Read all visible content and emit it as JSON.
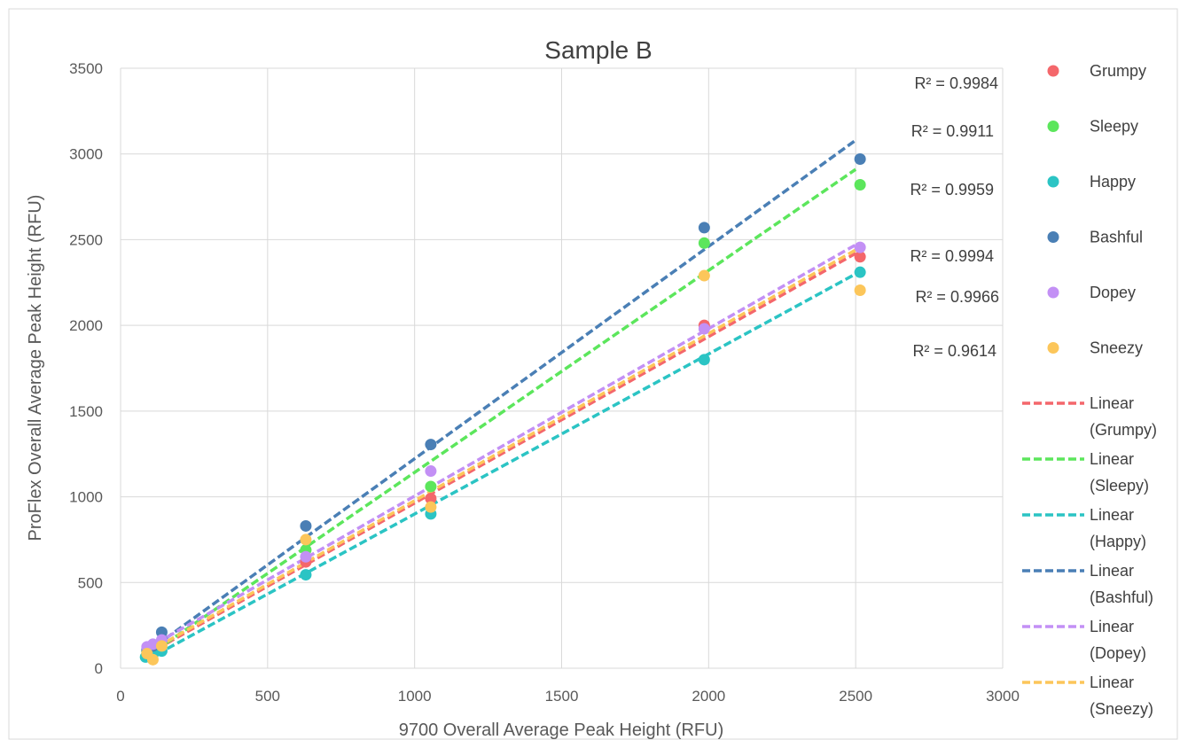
{
  "chart_data": {
    "type": "scatter",
    "title": "Sample B",
    "xlabel": "9700 Overall Average Peak Height (RFU)",
    "ylabel": "ProFlex Overall Average Peak Height (RFU)",
    "xlim": [
      0,
      3000
    ],
    "ylim": [
      0,
      3500
    ],
    "x_ticks": [
      0,
      500,
      1000,
      1500,
      2000,
      2500,
      3000
    ],
    "y_ticks": [
      0,
      500,
      1000,
      1500,
      2000,
      2500,
      3000,
      3500
    ],
    "grid": true,
    "legend_position": "right",
    "series": [
      {
        "name": "Grumpy",
        "color": "#f4676b",
        "points": [
          [
            90,
            100
          ],
          [
            110,
            120
          ],
          [
            140,
            145
          ],
          [
            630,
            620
          ],
          [
            1055,
            990
          ],
          [
            1985,
            2000
          ],
          [
            2515,
            2400
          ]
        ],
        "trendline": {
          "label": "Linear",
          "name": "(Grumpy)",
          "x0": 90,
          "y0": 80,
          "x1": 2500,
          "y1": 2420
        },
        "r2_label": "R² = 0.9984"
      },
      {
        "name": "Sleepy",
        "color": "#5ce65c",
        "points": [
          [
            90,
            95
          ],
          [
            110,
            120
          ],
          [
            140,
            150
          ],
          [
            630,
            690
          ],
          [
            1055,
            1060
          ],
          [
            1985,
            2480
          ],
          [
            2515,
            2820
          ]
        ],
        "trendline": {
          "label": "Linear",
          "name": "(Sleepy)",
          "x0": 90,
          "y0": 70,
          "x1": 2500,
          "y1": 2910
        },
        "r2_label": "R² = 0.9911"
      },
      {
        "name": "Happy",
        "color": "#2bc4c4",
        "points": [
          [
            85,
            65
          ],
          [
            110,
            80
          ],
          [
            140,
            100
          ],
          [
            630,
            545
          ],
          [
            1055,
            900
          ],
          [
            1985,
            1800
          ],
          [
            2515,
            2310
          ]
        ],
        "trendline": {
          "label": "Linear",
          "name": "(Happy)",
          "x0": 90,
          "y0": 50,
          "x1": 2500,
          "y1": 2300
        },
        "r2_label": "R² = 0.9959"
      },
      {
        "name": "Bashful",
        "color": "#4a7fb5",
        "points": [
          [
            90,
            110
          ],
          [
            110,
            130
          ],
          [
            140,
            210
          ],
          [
            630,
            830
          ],
          [
            1055,
            1305
          ],
          [
            1985,
            2570
          ],
          [
            2515,
            2970
          ]
        ],
        "trendline": {
          "label": "Linear",
          "name": "(Bashful)",
          "x0": 90,
          "y0": 95,
          "x1": 2500,
          "y1": 3080
        },
        "r2_label": "R² = 0.9994"
      },
      {
        "name": "Dopey",
        "color": "#c390f5",
        "points": [
          [
            90,
            125
          ],
          [
            110,
            140
          ],
          [
            140,
            165
          ],
          [
            630,
            650
          ],
          [
            1055,
            1150
          ],
          [
            1985,
            1980
          ],
          [
            2515,
            2455
          ]
        ],
        "trendline": {
          "label": "Linear",
          "name": "(Dopey)",
          "x0": 90,
          "y0": 115,
          "x1": 2500,
          "y1": 2470
        },
        "r2_label": "R² = 0.9966"
      },
      {
        "name": "Sneezy",
        "color": "#fcc65a",
        "points": [
          [
            90,
            85
          ],
          [
            110,
            50
          ],
          [
            140,
            130
          ],
          [
            630,
            750
          ],
          [
            1055,
            940
          ],
          [
            1985,
            2290
          ],
          [
            2515,
            2205
          ]
        ],
        "trendline": {
          "label": "Linear",
          "name": "(Sneezy)",
          "x0": 90,
          "y0": 90,
          "x1": 2500,
          "y1": 2440
        },
        "r2_label": "R² = 0.9614"
      }
    ]
  }
}
